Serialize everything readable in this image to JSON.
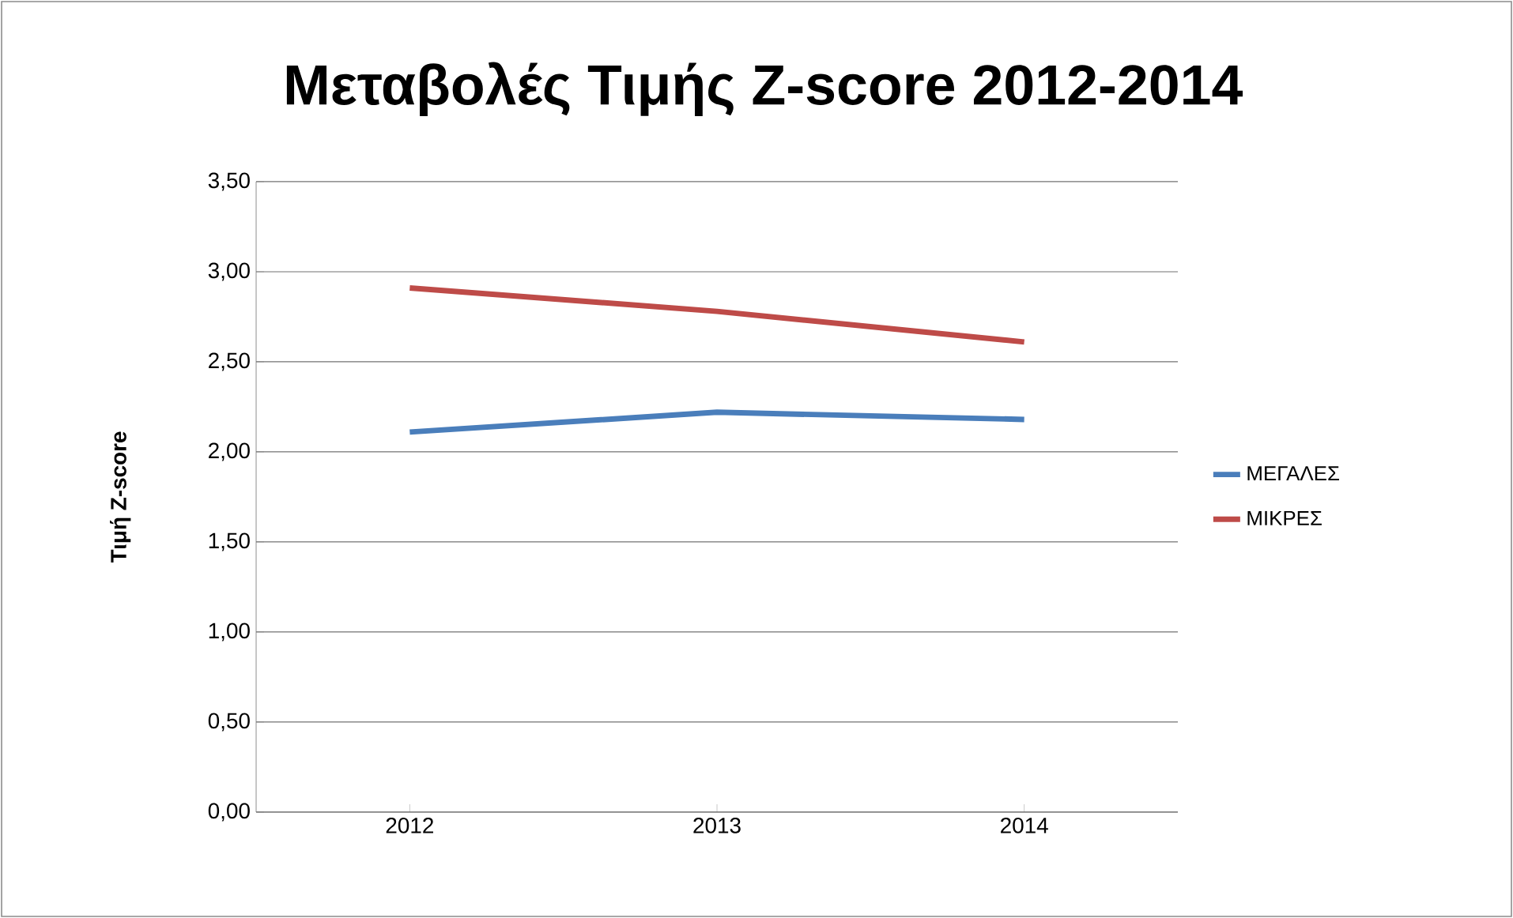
{
  "chart_data": {
    "type": "line",
    "title": "Μεταβολές Τιμής Z-score 2012-2014",
    "ylabel": "Τιμή Z-score",
    "categories": [
      "2012",
      "2013",
      "2014"
    ],
    "series": [
      {
        "name": "ΜΕΓΑΛΕΣ",
        "color": "#4a7ebb",
        "values": [
          2.11,
          2.22,
          2.18
        ]
      },
      {
        "name": "ΜΙΚΡΕΣ",
        "color": "#be4b48",
        "values": [
          2.91,
          2.78,
          2.61
        ]
      }
    ],
    "ylim": [
      0,
      3.5
    ],
    "yticks": [
      {
        "value": 0,
        "label": "0,00"
      },
      {
        "value": 0.5,
        "label": "0,50"
      },
      {
        "value": 1,
        "label": "1,00"
      },
      {
        "value": 1.5,
        "label": "1,50"
      },
      {
        "value": 2,
        "label": "2,00"
      },
      {
        "value": 2.5,
        "label": "2,50"
      },
      {
        "value": 3,
        "label": "3,00"
      },
      {
        "value": 3.5,
        "label": "3,50"
      }
    ],
    "grid": "y",
    "legend": "right",
    "marker": "none",
    "line_style": "solid"
  }
}
